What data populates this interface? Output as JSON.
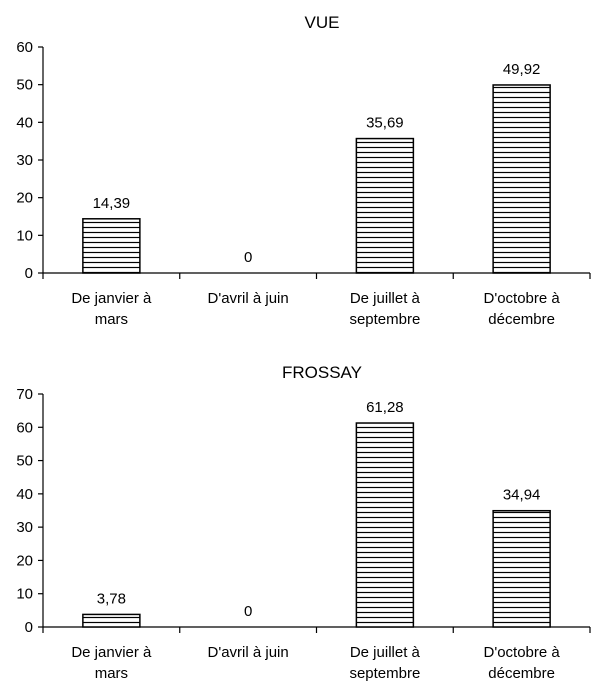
{
  "chart_data": [
    {
      "type": "bar",
      "title": "VUE",
      "categories": [
        [
          "De janvier à",
          "mars"
        ],
        [
          "D'avril à juin"
        ],
        [
          "De juillet à",
          "septembre"
        ],
        [
          "D'octobre à",
          "décembre"
        ]
      ],
      "values": [
        14.39,
        0,
        35.69,
        49.92
      ],
      "data_labels": [
        "14,39",
        "0",
        "35,69",
        "49,92"
      ],
      "ylim": [
        0,
        60
      ],
      "yticks": [
        "0",
        "10",
        "20",
        "30",
        "40",
        "50",
        "60"
      ],
      "xlabel": "",
      "ylabel": "",
      "grid": false,
      "bar_fill": "horizontal-hatch",
      "colors": {
        "bar_stroke": "#000000",
        "hatch": "#000000",
        "background": "#ffffff"
      }
    },
    {
      "type": "bar",
      "title": "FROSSAY",
      "categories": [
        [
          "De janvier à",
          "mars"
        ],
        [
          "D'avril à juin"
        ],
        [
          "De juillet à",
          "septembre"
        ],
        [
          "D'octobre à",
          "décembre"
        ]
      ],
      "values": [
        3.78,
        0,
        61.28,
        34.94
      ],
      "data_labels": [
        "3,78",
        "0",
        "61,28",
        "34,94"
      ],
      "ylim": [
        0,
        70
      ],
      "yticks": [
        "0",
        "10",
        "20",
        "30",
        "40",
        "50",
        "60",
        "70"
      ],
      "xlabel": "",
      "ylabel": "",
      "grid": false,
      "bar_fill": "horizontal-hatch",
      "colors": {
        "bar_stroke": "#000000",
        "hatch": "#000000",
        "background": "#ffffff"
      }
    }
  ]
}
